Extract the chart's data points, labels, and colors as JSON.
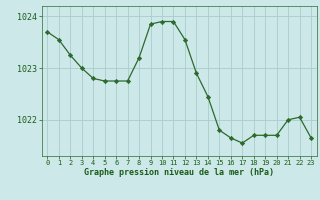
{
  "x": [
    0,
    1,
    2,
    3,
    4,
    5,
    6,
    7,
    8,
    9,
    10,
    11,
    12,
    13,
    14,
    15,
    16,
    17,
    18,
    19,
    20,
    21,
    22,
    23
  ],
  "y": [
    1023.7,
    1023.55,
    1023.25,
    1023.0,
    1022.8,
    1022.75,
    1022.75,
    1022.75,
    1023.2,
    1023.85,
    1023.9,
    1023.9,
    1023.55,
    1022.9,
    1022.45,
    1021.8,
    1021.65,
    1021.55,
    1021.7,
    1021.7,
    1021.7,
    1022.0,
    1022.05,
    1021.65
  ],
  "xlabel": "Graphe pression niveau de la mer (hPa)",
  "ylim": [
    1021.3,
    1024.2
  ],
  "xlim": [
    -0.5,
    23.5
  ],
  "yticks": [
    1022,
    1023,
    1024
  ],
  "xticks": [
    0,
    1,
    2,
    3,
    4,
    5,
    6,
    7,
    8,
    9,
    10,
    11,
    12,
    13,
    14,
    15,
    16,
    17,
    18,
    19,
    20,
    21,
    22,
    23
  ],
  "line_color": "#2d6a2d",
  "marker_color": "#2d6a2d",
  "bg_color": "#cce8e8",
  "grid_color": "#aacccc",
  "axis_label_color": "#1a5c1a",
  "tick_label_color": "#1a5c1a",
  "border_color": "#2d6a2d"
}
